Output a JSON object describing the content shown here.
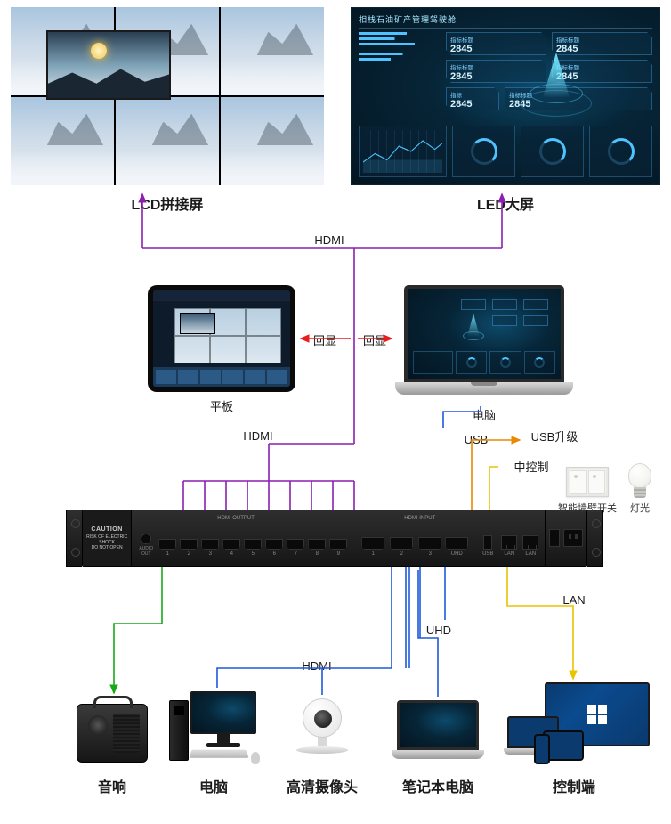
{
  "displays": {
    "lcd_label": "LCD拼接屏",
    "led_label": "LED大屏",
    "led_title": "相栈石油矿产管理驾驶舱",
    "led_metric_value": "2845"
  },
  "mid_devices": {
    "tablet_label": "平板",
    "laptop_label": "电脑"
  },
  "connections": {
    "hdmi": "HDMI",
    "echo": "回显",
    "usb": "USB",
    "usb_upgrade": "USB升级",
    "central_control": "中控制",
    "lan": "LAN",
    "uhd": "UHD"
  },
  "peripherals": {
    "wall_switch": "智能墙壁开关",
    "light": "灯光"
  },
  "unit": {
    "caution_title": "CAUTION",
    "caution_line1": "RISK OF ELECTRIC SHOCK",
    "caution_line2": "DO NOT OPEN",
    "output_label": "HDMI OUTPUT",
    "input_label": "HDMI INPUT",
    "output_ports": [
      "1",
      "2",
      "3",
      "4",
      "5",
      "6",
      "7",
      "8",
      "9"
    ],
    "input_ports": [
      "1",
      "2",
      "3"
    ],
    "uhd_port": "UHD",
    "usb_port": "USB",
    "lan_port": "LAN"
  },
  "bottom": {
    "speaker": "音响",
    "desktop": "电脑",
    "camera": "高清摄像头",
    "notebook": "笔记本电脑",
    "control": "控制端"
  },
  "colors": {
    "hdmi_line": "#8a1fb0",
    "echo_line": "#e81e1e",
    "usb_line": "#e88a00",
    "lan_line": "#e8c400",
    "audio_line": "#18a818",
    "video_line": "#1e5ad8"
  }
}
